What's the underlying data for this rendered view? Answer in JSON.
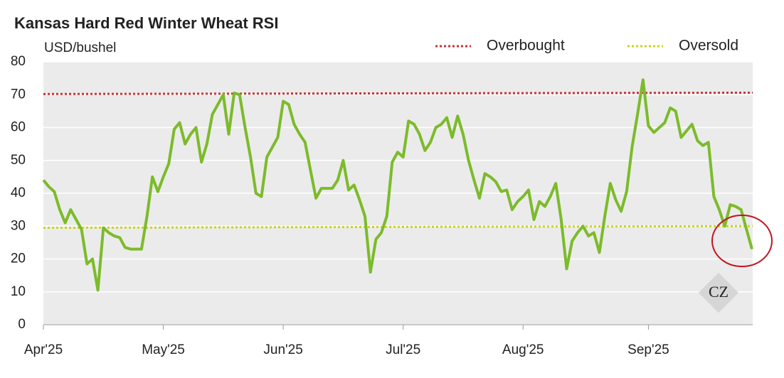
{
  "chart_data": {
    "type": "line",
    "title": "Kansas Hard Red Winter Wheat RSI",
    "y_label": "USD/bushel",
    "watermark": "CZ",
    "categories": [
      "Apr'25",
      null,
      null,
      null,
      null,
      null,
      null,
      null,
      null,
      null,
      null,
      null,
      null,
      null,
      null,
      null,
      null,
      null,
      null,
      null,
      null,
      null,
      "May'25",
      null,
      null,
      null,
      null,
      null,
      null,
      null,
      null,
      null,
      null,
      null,
      null,
      null,
      null,
      null,
      null,
      null,
      null,
      null,
      null,
      null,
      "Jun'25",
      null,
      null,
      null,
      null,
      null,
      null,
      null,
      null,
      null,
      null,
      null,
      null,
      null,
      null,
      null,
      null,
      null,
      null,
      null,
      null,
      null,
      "Jul'25",
      null,
      null,
      null,
      null,
      null,
      null,
      null,
      null,
      null,
      null,
      null,
      null,
      null,
      null,
      null,
      null,
      null,
      null,
      null,
      null,
      null,
      "Aug'25",
      null,
      null,
      null,
      null,
      null,
      null,
      null,
      null,
      null,
      null,
      null,
      null,
      null,
      null,
      null,
      null,
      null,
      null,
      null,
      null,
      null,
      null,
      "Sep'25",
      null,
      null,
      null,
      null,
      null,
      null,
      null,
      null,
      null,
      null,
      null,
      null,
      null,
      null,
      null,
      null,
      null,
      null,
      null
    ],
    "values": [
      44,
      42,
      40.5,
      35,
      31,
      35,
      32,
      29,
      18.5,
      20,
      10.5,
      29.5,
      28,
      27,
      26.5,
      23.5,
      23,
      23,
      23,
      33,
      45,
      40.5,
      45,
      49,
      59.5,
      61.5,
      55,
      58,
      60,
      49.5,
      55,
      64,
      67,
      70,
      58,
      70.5,
      70,
      60,
      51,
      40,
      39,
      51,
      54,
      57,
      68,
      67,
      61,
      58,
      55.5,
      47,
      38.5,
      41.5,
      41.5,
      41.5,
      44,
      50,
      41,
      42.5,
      38,
      33,
      16,
      26,
      28,
      33,
      49.5,
      52.5,
      51,
      62,
      61,
      58,
      53,
      55.5,
      60,
      61,
      63,
      57,
      63.5,
      58,
      50,
      44,
      38.5,
      46,
      45,
      43.5,
      40.5,
      41,
      35,
      37.5,
      39,
      41,
      32,
      37.5,
      36,
      39,
      43,
      32,
      17,
      25.5,
      28,
      30,
      27,
      28,
      22,
      33,
      43,
      38,
      34.5,
      40.5,
      54,
      64,
      74.5,
      60.5,
      58.5,
      60,
      61.5,
      66,
      65,
      57,
      59,
      61,
      56,
      54.5,
      55.5,
      39,
      35,
      30,
      36.5,
      36,
      35,
      29,
      23
    ],
    "color": "#7cbb2a",
    "reference_lines": [
      {
        "name": "Overbought",
        "color": "#c8333a",
        "start": 70.2,
        "end": 70.6
      },
      {
        "name": "Oversold",
        "color": "#cdd21f",
        "start": 29.5,
        "end": 30
      }
    ],
    "ylim": [
      0,
      80
    ],
    "yticks": [
      0,
      10,
      20,
      30,
      40,
      50,
      60,
      70,
      80
    ],
    "grid": true
  }
}
